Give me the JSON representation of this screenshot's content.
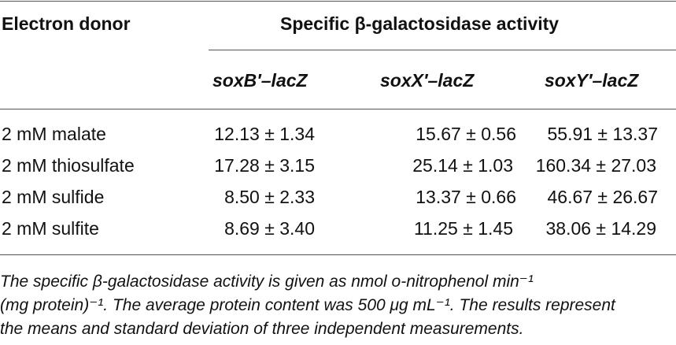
{
  "table": {
    "col_header_donor": "Electron donor",
    "col_header_activity": "Specific β-galactosidase activity",
    "sub_headers": [
      "soxB′–lacZ",
      "soxX′–lacZ",
      "soxY′–lacZ"
    ],
    "rows": [
      {
        "donor": "2 mM malate",
        "values": [
          "12.13 ± 1.34",
          "15.67 ± 0.56",
          "55.91 ± 13.37"
        ]
      },
      {
        "donor": "2 mM thiosulfate",
        "values": [
          "17.28 ± 3.15",
          "25.14 ± 1.03",
          "160.34 ± 27.03"
        ]
      },
      {
        "donor": "2 mM sulfide",
        "values": [
          "8.50 ± 2.33",
          "13.37 ± 0.66",
          "46.67 ± 26.67"
        ]
      },
      {
        "donor": "2 mM sulfite",
        "values": [
          "8.69 ± 3.40",
          "11.25 ± 1.45",
          "38.06 ± 14.29"
        ]
      }
    ]
  },
  "footnote": {
    "line1": "The specific β-galactosidase activity is given as nmol o-nitrophenol min⁻¹",
    "line2": "(mg protein)⁻¹. The average protein content was 500 μg mL⁻¹. The results represent",
    "line3": "the means and standard deviation of three independent measurements."
  }
}
